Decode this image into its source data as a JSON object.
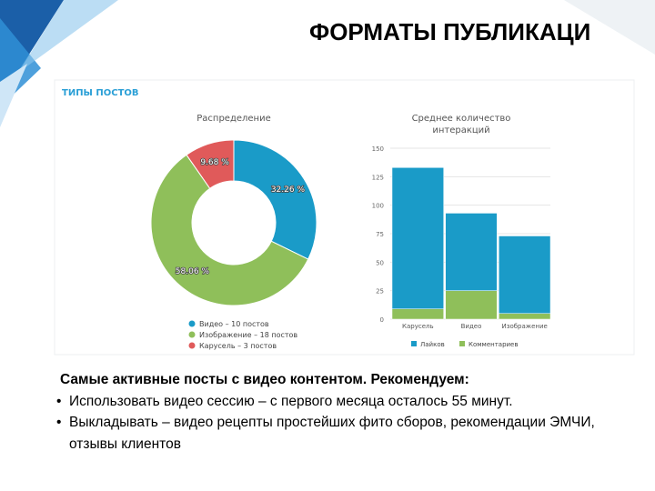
{
  "slide_title": "ФОРМАТЫ ПУБЛИКАЦИ",
  "panel_title": "ТИПЫ ПОСТОВ",
  "chart_data": [
    {
      "type": "pie",
      "donut": true,
      "title": "Распределение",
      "categories": [
        "Видео – 10 постов",
        "Изображение – 18 постов",
        "Карусель – 3 постов"
      ],
      "values": [
        32.26,
        58.06,
        9.68
      ],
      "value_labels": [
        "32.26 %",
        "58.06 %",
        "9.68 %"
      ],
      "colors": [
        "#1a9bc8",
        "#8fbf5a",
        "#e05a5a"
      ]
    },
    {
      "type": "bar",
      "stacked": true,
      "title": "Среднее количество интеракций",
      "categories": [
        "Карусель",
        "Видео",
        "Изображение"
      ],
      "series": [
        {
          "name": "Лайков",
          "color": "#1a9bc8",
          "values": [
            124,
            68,
            68
          ]
        },
        {
          "name": "Комментариев",
          "color": "#8fbf5a",
          "values": [
            9,
            25,
            5
          ]
        }
      ],
      "ylim": [
        0,
        150
      ],
      "yticks": [
        0,
        25,
        50,
        75,
        100,
        125,
        150
      ],
      "grid": true
    }
  ],
  "text": {
    "lead": "Самые активные посты с видео контентом. Рекомендуем:",
    "bullets": [
      "Использовать видео сессию – с первого месяца осталось 55 минут.",
      "Выкладывать – видео рецепты простейших фито сборов, рекомендации ЭМЧИ, отзывы клиентов"
    ]
  }
}
